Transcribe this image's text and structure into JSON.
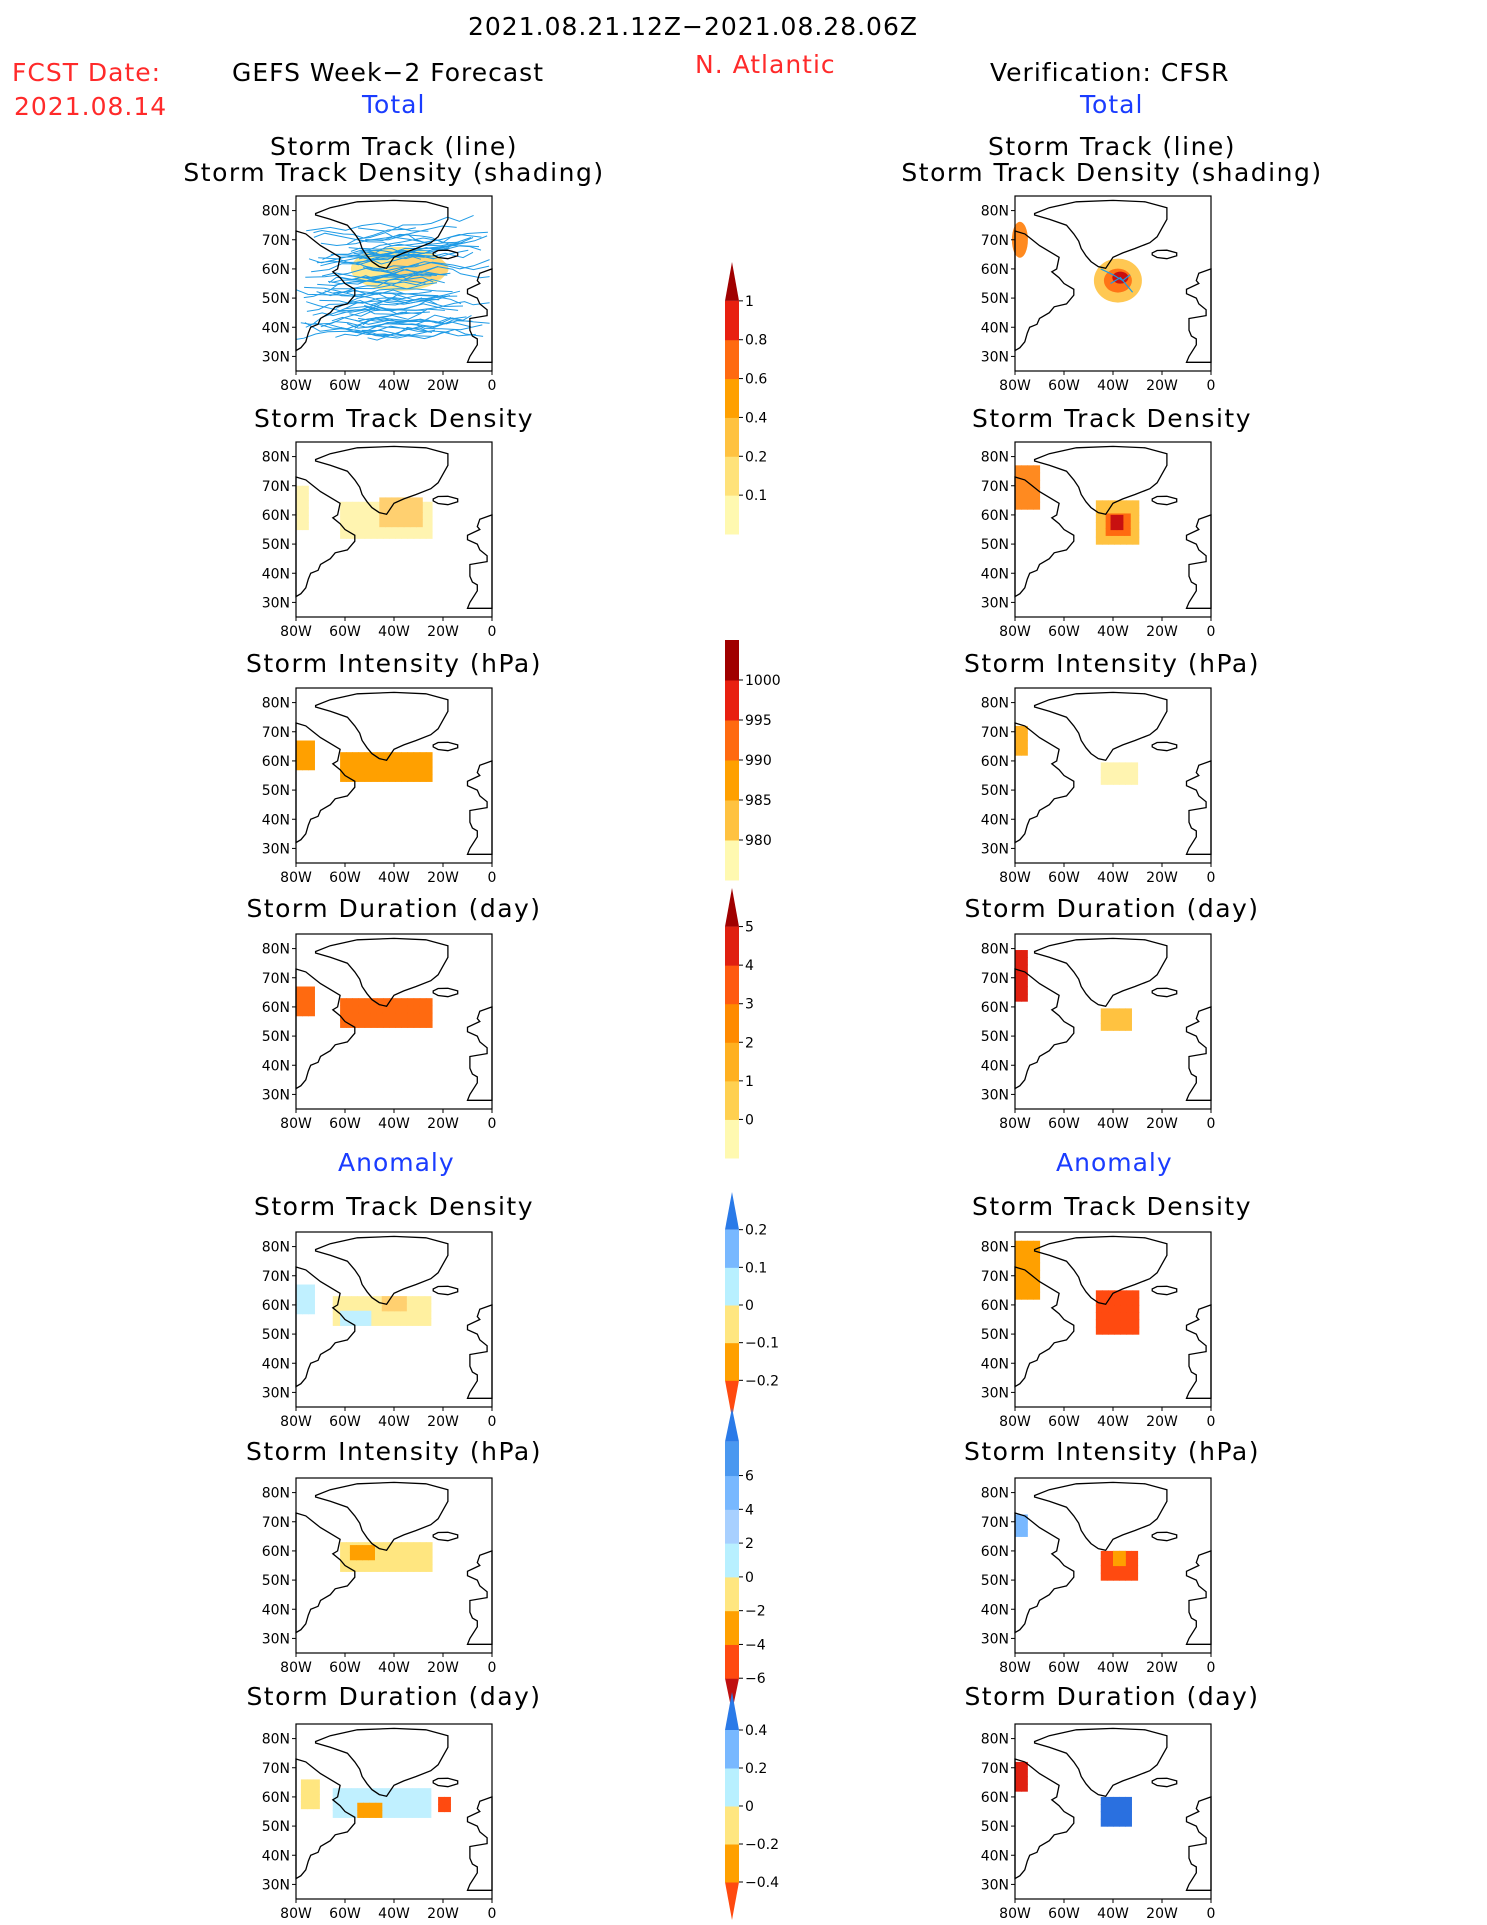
{
  "header": {
    "period": "2021.08.21.12Z−2021.08.28.06Z",
    "fcst_label": "FCST Date:",
    "fcst_date": "2021.08.14",
    "forecast_title": "GEFS Week−2 Forecast",
    "region": "N. Atlantic",
    "verification_title": "Verification: CFSR"
  },
  "sections": {
    "total": "Total",
    "anomaly": "Anomaly"
  },
  "panel_titles": {
    "track_line": "Storm Track (line)",
    "track_shading": "Storm Track Density (shading)",
    "density": "Storm Track Density",
    "intensity": "Storm Intensity (hPa)",
    "duration": "Storm Duration (day)"
  },
  "colors": {
    "title_red": "#ff2a2a",
    "section_blue": "#1a3cff",
    "track_line": "#1f9be6",
    "land_outline": "#000000"
  },
  "chart_data": {
    "type": "heatmap",
    "map_extent": {
      "lon": [
        -80,
        0
      ],
      "lat": [
        25,
        85
      ]
    },
    "x_ticks": [
      "80W",
      "60W",
      "40W",
      "20W",
      "0"
    ],
    "y_ticks": [
      "80N",
      "70N",
      "60N",
      "50N",
      "40N",
      "30N"
    ],
    "colorbars": [
      {
        "id": "density_total",
        "values": [
          "0.1",
          "0.2",
          "0.4",
          "0.6",
          "0.8",
          "1"
        ],
        "colors": [
          "#fff9b0",
          "#ffe27a",
          "#ffc240",
          "#ffa000",
          "#ff6a10",
          "#e82010",
          "#a00000"
        ],
        "ends": "max"
      },
      {
        "id": "intensity_total",
        "values": [
          "1000",
          "995",
          "990",
          "985",
          "980"
        ],
        "colors": [
          "#fff9b0",
          "#ffc240",
          "#ffa000",
          "#ff6a10",
          "#e82010",
          "#a00000"
        ],
        "ends": "min"
      },
      {
        "id": "duration_total",
        "values": [
          "0",
          "1",
          "2",
          "3",
          "4",
          "5"
        ],
        "colors": [
          "#fff9b0",
          "#ffd050",
          "#ffb020",
          "#ff8a00",
          "#ff5a10",
          "#e02010",
          "#a00000"
        ],
        "ends": "max"
      },
      {
        "id": "density_anomaly",
        "values": [
          "0.2",
          "0.1",
          "0",
          "−0.1",
          "−0.2"
        ],
        "colors": [
          "#ff4a10",
          "#ffa000",
          "#ffe680",
          "#b8f0ff",
          "#78b8ff",
          "#2a7ae8"
        ],
        "ends": "both"
      },
      {
        "id": "intensity_anomaly",
        "values": [
          "6",
          "4",
          "2",
          "0",
          "−2",
          "−4",
          "−6"
        ],
        "colors": [
          "#c01010",
          "#ff4a10",
          "#ffa000",
          "#ffe680",
          "#b8f0ff",
          "#a8d0ff",
          "#78b8ff",
          "#4a98f0",
          "#2a7ae8"
        ],
        "ends": "both"
      },
      {
        "id": "duration_anomaly",
        "values": [
          "0.4",
          "0.2",
          "0",
          "−0.2",
          "−0.4"
        ],
        "colors": [
          "#ff4a10",
          "#ffa000",
          "#ffe680",
          "#b8f0ff",
          "#78b8ff",
          "#2a7ae8"
        ],
        "ends": "both"
      }
    ],
    "panels": [
      {
        "column": "forecast",
        "variable": "storm_track_lines_and_density",
        "max_density_region": {
          "lon": [
            -45,
            -25
          ],
          "lat": [
            55,
            65
          ]
        }
      },
      {
        "column": "verification",
        "variable": "storm_track_lines_and_density",
        "max_density_region": {
          "lon": [
            -45,
            -30
          ],
          "lat": [
            50,
            65
          ]
        }
      },
      {
        "column": "forecast",
        "variable": "density"
      },
      {
        "column": "verification",
        "variable": "density"
      },
      {
        "column": "forecast",
        "variable": "intensity"
      },
      {
        "column": "verification",
        "variable": "intensity"
      },
      {
        "column": "forecast",
        "variable": "duration"
      },
      {
        "column": "verification",
        "variable": "duration"
      },
      {
        "column": "forecast",
        "variable": "density_anomaly"
      },
      {
        "column": "verification",
        "variable": "density_anomaly"
      },
      {
        "column": "forecast",
        "variable": "intensity_anomaly"
      },
      {
        "column": "verification",
        "variable": "intensity_anomaly"
      },
      {
        "column": "forecast",
        "variable": "duration_anomaly"
      },
      {
        "column": "verification",
        "variable": "duration_anomaly"
      }
    ]
  }
}
